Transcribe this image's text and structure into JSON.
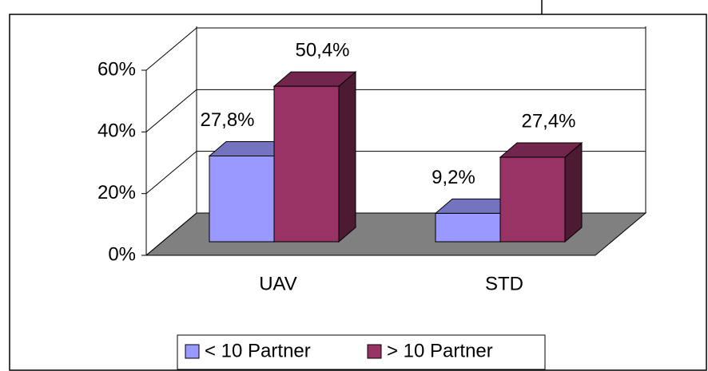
{
  "chart_data": {
    "type": "bar3d",
    "categories": [
      "UAV",
      "STD"
    ],
    "series": [
      {
        "name": "< 10 Partner",
        "color": "#9999ff",
        "values": [
          27.8,
          9.2
        ],
        "value_labels": [
          "27,8%",
          "9,2%"
        ]
      },
      {
        "name": "> 10 Partner",
        "color": "#993366",
        "values": [
          50.4,
          27.4
        ],
        "value_labels": [
          "50,4%",
          "27,4%"
        ]
      }
    ],
    "ylim": [
      0,
      60
    ],
    "yticks": [
      {
        "value": 0,
        "label": "0%"
      },
      {
        "value": 20,
        "label": "20%"
      },
      {
        "value": 40,
        "label": "40%"
      },
      {
        "value": 60,
        "label": "60%"
      }
    ],
    "grid": true
  }
}
